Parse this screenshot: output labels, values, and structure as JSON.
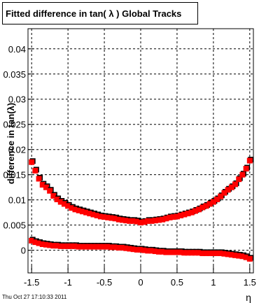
{
  "title": "Fitted difference in tan( λ )  Global Tracks",
  "timestamp": "Thu Oct 27 17:10:33 2011",
  "chart_data": {
    "type": "scatter",
    "title": "Fitted difference in tan( λ )  Global Tracks",
    "xlabel": "η",
    "ylabel": "difference in tan(λ)",
    "xlim": [
      -1.55,
      1.55
    ],
    "ylim": [
      -0.0045,
      0.044
    ],
    "x_ticks": [
      "-1.5",
      "-1",
      "-0.5",
      "0",
      "0.5",
      "1",
      "1.5"
    ],
    "y_ticks": [
      "0",
      "0.005",
      "0.01",
      "0.015",
      "0.02",
      "0.025",
      "0.03",
      "0.035",
      "0.04"
    ],
    "grid": true,
    "marker_colors": {
      "shadow": "#000000",
      "points": "#ff0000"
    },
    "series": [
      {
        "x": [
          -1.5,
          -1.45,
          -1.4,
          -1.35,
          -1.3,
          -1.25,
          -1.2,
          -1.15,
          -1.1,
          -1.05,
          -1.0,
          -0.95,
          -0.9,
          -0.85,
          -0.8,
          -0.75,
          -0.7,
          -0.65,
          -0.6,
          -0.55,
          -0.5,
          -0.45,
          -0.4,
          -0.35,
          -0.3,
          -0.25,
          -0.2,
          -0.15,
          -0.1,
          -0.05,
          0.0,
          0.05,
          0.1,
          0.15,
          0.2,
          0.25,
          0.3,
          0.35,
          0.4,
          0.45,
          0.5,
          0.55,
          0.6,
          0.65,
          0.7,
          0.75,
          0.8,
          0.85,
          0.9,
          0.95,
          1.0,
          1.05,
          1.1,
          1.15,
          1.2,
          1.25,
          1.3,
          1.35,
          1.4,
          1.45,
          1.5
        ],
        "y": [
          0.0175,
          0.0158,
          0.0142,
          0.013,
          0.0125,
          0.0118,
          0.0108,
          0.0101,
          0.0096,
          0.0092,
          0.0088,
          0.0084,
          0.0081,
          0.0079,
          0.0077,
          0.0075,
          0.0073,
          0.0071,
          0.0069,
          0.0067,
          0.0066,
          0.0065,
          0.0064,
          0.0063,
          0.0061,
          0.006,
          0.0059,
          0.0058,
          0.0058,
          0.0057,
          0.0055,
          0.0056,
          0.0058,
          0.0058,
          0.0059,
          0.006,
          0.0061,
          0.0063,
          0.0065,
          0.0066,
          0.0067,
          0.0069,
          0.0071,
          0.0073,
          0.0075,
          0.0078,
          0.0081,
          0.0085,
          0.0088,
          0.0092,
          0.0096,
          0.0101,
          0.0107,
          0.0114,
          0.012,
          0.0125,
          0.0131,
          0.0141,
          0.015,
          0.0162,
          0.0178
        ]
      },
      {
        "x": [
          -1.5,
          -1.45,
          -1.4,
          -1.35,
          -1.3,
          -1.25,
          -1.2,
          -1.15,
          -1.1,
          -1.05,
          -1.0,
          -0.95,
          -0.9,
          -0.85,
          -0.8,
          -0.75,
          -0.7,
          -0.65,
          -0.6,
          -0.55,
          -0.5,
          -0.45,
          -0.4,
          -0.35,
          -0.3,
          -0.25,
          -0.2,
          -0.15,
          -0.1,
          -0.05,
          0.0,
          0.05,
          0.1,
          0.15,
          0.2,
          0.25,
          0.3,
          0.35,
          0.4,
          0.45,
          0.5,
          0.55,
          0.6,
          0.65,
          0.7,
          0.75,
          0.8,
          0.85,
          0.9,
          0.95,
          1.0,
          1.05,
          1.1,
          1.15,
          1.2,
          1.25,
          1.3,
          1.35,
          1.4,
          1.45,
          1.5
        ],
        "y": [
          0.0019,
          0.0016,
          0.0014,
          0.0012,
          0.0011,
          0.001,
          0.0009,
          0.0009,
          0.0008,
          0.0008,
          0.0008,
          0.0008,
          0.0008,
          0.0007,
          0.0007,
          0.0007,
          0.0007,
          0.0007,
          0.0007,
          0.0007,
          0.0007,
          0.0007,
          0.0006,
          0.0006,
          0.0005,
          0.0005,
          0.0004,
          0.0003,
          0.0002,
          0.0001,
          0.0001,
          0.0,
          -0.0001,
          -0.0001,
          -0.0002,
          -0.0003,
          -0.0003,
          -0.0004,
          -0.0004,
          -0.0004,
          -0.0004,
          -0.0004,
          -0.0005,
          -0.0005,
          -0.0005,
          -0.0005,
          -0.0005,
          -0.0006,
          -0.0006,
          -0.0006,
          -0.0006,
          -0.0006,
          -0.0006,
          -0.0007,
          -0.0008,
          -0.0009,
          -0.001,
          -0.0011,
          -0.0012,
          -0.0014,
          -0.0017
        ]
      }
    ]
  }
}
